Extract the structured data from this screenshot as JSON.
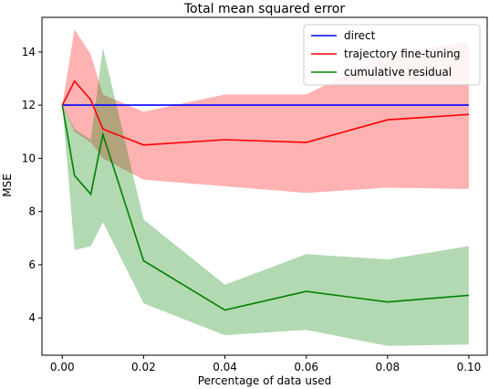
{
  "chart_data": {
    "type": "line",
    "title": "Total mean squared error",
    "xlabel": "Percentage of data used",
    "ylabel": "MSE",
    "xlim": [
      -0.005,
      0.1045
    ],
    "ylim": [
      2.6,
      15.3
    ],
    "xticks": [
      0.0,
      0.02,
      0.04,
      0.06,
      0.08,
      0.1
    ],
    "xtick_labels": [
      "0.00",
      "0.02",
      "0.04",
      "0.06",
      "0.08",
      "0.10"
    ],
    "yticks": [
      4,
      6,
      8,
      10,
      12,
      14
    ],
    "ytick_labels": [
      "4",
      "6",
      "8",
      "10",
      "12",
      "14"
    ],
    "grid": false,
    "legend_position": "top-right",
    "series": [
      {
        "name": "direct",
        "color": "#0000ff",
        "x": [
          0.0,
          0.1
        ],
        "y": [
          12.0,
          12.0
        ],
        "band": null
      },
      {
        "name": "trajectory fine-tuning",
        "color": "#ff0000",
        "x": [
          0.0,
          0.003,
          0.007,
          0.01,
          0.02,
          0.04,
          0.06,
          0.08,
          0.1
        ],
        "y": [
          12.0,
          12.9,
          12.2,
          11.1,
          10.5,
          10.7,
          10.6,
          11.45,
          11.65
        ],
        "band": {
          "lower": [
            12.0,
            11.0,
            10.6,
            10.0,
            9.2,
            8.95,
            8.7,
            8.9,
            8.85
          ],
          "upper": [
            12.0,
            14.85,
            13.9,
            12.4,
            11.75,
            12.4,
            12.4,
            13.9,
            14.4
          ]
        }
      },
      {
        "name": "cumulative residual",
        "color": "#008000",
        "x": [
          0.0,
          0.003,
          0.007,
          0.01,
          0.02,
          0.04,
          0.06,
          0.08,
          0.1
        ],
        "y": [
          12.0,
          9.35,
          8.65,
          10.9,
          6.15,
          4.3,
          5.0,
          4.6,
          4.85
        ],
        "band": {
          "lower": [
            12.0,
            6.55,
            6.7,
            7.6,
            4.55,
            3.35,
            3.55,
            2.95,
            3.0
          ],
          "upper": [
            12.0,
            11.1,
            10.7,
            14.15,
            7.7,
            5.25,
            6.4,
            6.2,
            6.7
          ]
        }
      }
    ]
  }
}
